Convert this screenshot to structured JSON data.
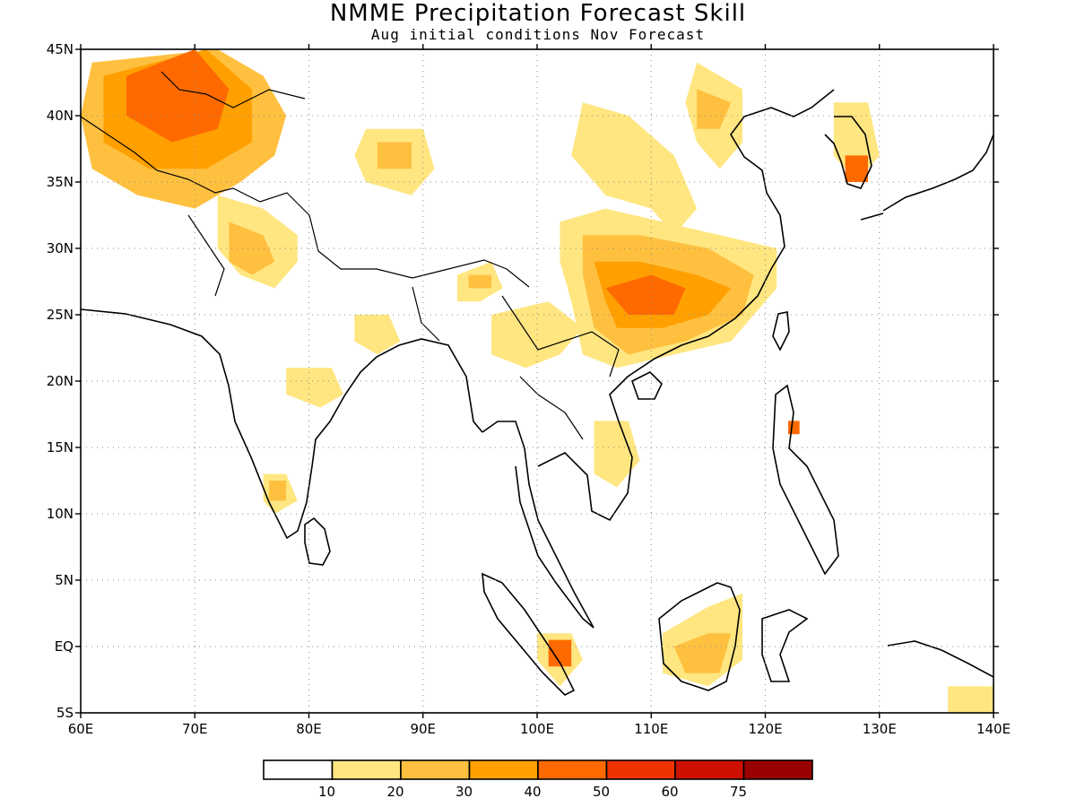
{
  "title": "NMME Precipitation Forecast Skill",
  "subtitle": "Aug initial conditions  Nov Forecast",
  "map": {
    "lon_range": [
      60,
      140
    ],
    "lat_range": [
      -5,
      45
    ],
    "lon_ticks": [
      {
        "value": 60,
        "label": "60E"
      },
      {
        "value": 70,
        "label": "70E"
      },
      {
        "value": 80,
        "label": "80E"
      },
      {
        "value": 90,
        "label": "90E"
      },
      {
        "value": 100,
        "label": "100E"
      },
      {
        "value": 110,
        "label": "110E"
      },
      {
        "value": 120,
        "label": "120E"
      },
      {
        "value": 130,
        "label": "130E"
      },
      {
        "value": 140,
        "label": "140E"
      }
    ],
    "lat_ticks": [
      {
        "value": 45,
        "label": "45N"
      },
      {
        "value": 40,
        "label": "40N"
      },
      {
        "value": 35,
        "label": "35N"
      },
      {
        "value": 30,
        "label": "30N"
      },
      {
        "value": 25,
        "label": "25N"
      },
      {
        "value": 20,
        "label": "20N"
      },
      {
        "value": 15,
        "label": "15N"
      },
      {
        "value": 10,
        "label": "10N"
      },
      {
        "value": 5,
        "label": "5N"
      },
      {
        "value": 0,
        "label": "EQ"
      },
      {
        "value": -5,
        "label": "5S"
      }
    ],
    "grid": "dotted"
  },
  "colorbar": {
    "colors": [
      "#ffffff",
      "#ffe680",
      "#ffc040",
      "#ffa000",
      "#ff6a00",
      "#ee3300",
      "#cc1100",
      "#990000"
    ],
    "labels": [
      "10",
      "20",
      "30",
      "40",
      "50",
      "60",
      "75"
    ]
  },
  "skill_regions": [
    {
      "level": 2,
      "pts": [
        [
          61,
          44
        ],
        [
          72,
          45
        ],
        [
          76,
          43
        ],
        [
          78,
          40
        ],
        [
          77,
          37
        ],
        [
          74,
          35
        ],
        [
          70,
          33
        ],
        [
          65,
          34
        ],
        [
          61,
          36
        ],
        [
          60,
          40
        ]
      ]
    },
    {
      "level": 3,
      "pts": [
        [
          62,
          43
        ],
        [
          71,
          45
        ],
        [
          75,
          42
        ],
        [
          75,
          38
        ],
        [
          71,
          36
        ],
        [
          66,
          36
        ],
        [
          62,
          38
        ]
      ]
    },
    {
      "level": 4,
      "pts": [
        [
          64,
          43
        ],
        [
          70,
          45
        ],
        [
          73,
          42
        ],
        [
          72,
          39
        ],
        [
          68,
          38
        ],
        [
          64,
          40
        ]
      ]
    },
    {
      "level": 1,
      "pts": [
        [
          72,
          34
        ],
        [
          76,
          33
        ],
        [
          79,
          31
        ],
        [
          79,
          29
        ],
        [
          77,
          27
        ],
        [
          74,
          28
        ],
        [
          72,
          30
        ]
      ]
    },
    {
      "level": 2,
      "pts": [
        [
          73,
          32
        ],
        [
          76,
          31
        ],
        [
          77,
          29
        ],
        [
          75,
          28
        ],
        [
          73,
          29
        ]
      ]
    },
    {
      "level": 1,
      "pts": [
        [
          85,
          39
        ],
        [
          90,
          39
        ],
        [
          91,
          36
        ],
        [
          89,
          34
        ],
        [
          85,
          35
        ],
        [
          84,
          37
        ]
      ]
    },
    {
      "level": 2,
      "pts": [
        [
          86,
          38
        ],
        [
          89,
          38
        ],
        [
          89,
          36
        ],
        [
          86,
          36
        ]
      ]
    },
    {
      "level": 1,
      "pts": [
        [
          104,
          41
        ],
        [
          108,
          40
        ],
        [
          112,
          37
        ],
        [
          114,
          33
        ],
        [
          112,
          31
        ],
        [
          110,
          33
        ],
        [
          106,
          34
        ],
        [
          103,
          37
        ]
      ]
    },
    {
      "level": 1,
      "pts": [
        [
          114,
          44
        ],
        [
          118,
          42
        ],
        [
          118,
          38
        ],
        [
          116,
          36
        ],
        [
          114,
          38
        ],
        [
          113,
          41
        ]
      ]
    },
    {
      "level": 2,
      "pts": [
        [
          114,
          42
        ],
        [
          117,
          41
        ],
        [
          116,
          39
        ],
        [
          114,
          39
        ]
      ]
    },
    {
      "level": 1,
      "pts": [
        [
          102,
          32
        ],
        [
          106,
          33
        ],
        [
          111,
          32
        ],
        [
          116,
          31
        ],
        [
          121,
          30
        ],
        [
          121,
          27
        ],
        [
          117,
          23
        ],
        [
          112,
          22
        ],
        [
          107,
          21
        ],
        [
          104,
          22
        ],
        [
          103,
          26
        ],
        [
          102,
          29
        ]
      ]
    },
    {
      "level": 2,
      "pts": [
        [
          104,
          31
        ],
        [
          109,
          31
        ],
        [
          115,
          30
        ],
        [
          119,
          28
        ],
        [
          118,
          25
        ],
        [
          113,
          23
        ],
        [
          108,
          22
        ],
        [
          105,
          24
        ],
        [
          104,
          28
        ]
      ]
    },
    {
      "level": 3,
      "pts": [
        [
          105,
          29
        ],
        [
          109,
          29
        ],
        [
          114,
          28
        ],
        [
          117,
          27
        ],
        [
          115,
          25
        ],
        [
          111,
          24
        ],
        [
          107,
          24
        ],
        [
          106,
          26
        ]
      ]
    },
    {
      "level": 4,
      "pts": [
        [
          106,
          27
        ],
        [
          110,
          28
        ],
        [
          113,
          27
        ],
        [
          112,
          25
        ],
        [
          108,
          25
        ]
      ]
    },
    {
      "level": 1,
      "pts": [
        [
          93,
          28
        ],
        [
          96,
          29
        ],
        [
          97,
          27
        ],
        [
          95,
          26
        ],
        [
          93,
          26
        ]
      ]
    },
    {
      "level": 2,
      "pts": [
        [
          94,
          28
        ],
        [
          96,
          28
        ],
        [
          96,
          27
        ],
        [
          94,
          27
        ]
      ]
    },
    {
      "level": 1,
      "pts": [
        [
          96,
          25
        ],
        [
          101,
          26
        ],
        [
          104,
          24
        ],
        [
          102,
          22
        ],
        [
          99,
          21
        ],
        [
          96,
          22
        ]
      ]
    },
    {
      "level": 1,
      "pts": [
        [
          84,
          25
        ],
        [
          87,
          25
        ],
        [
          88,
          23
        ],
        [
          86,
          22
        ],
        [
          84,
          23
        ]
      ]
    },
    {
      "level": 1,
      "pts": [
        [
          78,
          21
        ],
        [
          82,
          21
        ],
        [
          83,
          19
        ],
        [
          81,
          18
        ],
        [
          78,
          19
        ]
      ]
    },
    {
      "level": 1,
      "pts": [
        [
          76,
          13
        ],
        [
          78,
          13
        ],
        [
          79,
          11
        ],
        [
          77,
          10
        ],
        [
          76,
          11
        ]
      ]
    },
    {
      "level": 2,
      "pts": [
        [
          76.5,
          12.5
        ],
        [
          78,
          12.5
        ],
        [
          78,
          11
        ],
        [
          76.5,
          11
        ]
      ]
    },
    {
      "level": 1,
      "pts": [
        [
          105,
          17
        ],
        [
          108,
          17
        ],
        [
          109,
          14
        ],
        [
          107,
          12
        ],
        [
          105,
          13
        ]
      ]
    },
    {
      "level": 1,
      "pts": [
        [
          126,
          41
        ],
        [
          129,
          41
        ],
        [
          130,
          37
        ],
        [
          128,
          35
        ],
        [
          126,
          37
        ]
      ]
    },
    {
      "level": 4,
      "pts": [
        [
          127,
          37
        ],
        [
          129,
          37
        ],
        [
          129,
          35
        ],
        [
          127,
          35
        ]
      ]
    },
    {
      "level": 1,
      "pts": [
        [
          111,
          1
        ],
        [
          115,
          3
        ],
        [
          118,
          4
        ],
        [
          118,
          -1
        ],
        [
          115,
          -3
        ],
        [
          111,
          -2
        ]
      ]
    },
    {
      "level": 2,
      "pts": [
        [
          112,
          0
        ],
        [
          115,
          1
        ],
        [
          117,
          1
        ],
        [
          116,
          -2
        ],
        [
          113,
          -2
        ]
      ]
    },
    {
      "level": 1,
      "pts": [
        [
          100,
          1
        ],
        [
          103,
          1
        ],
        [
          104,
          -1
        ],
        [
          102,
          -3
        ],
        [
          100,
          -1
        ]
      ]
    },
    {
      "level": 4,
      "pts": [
        [
          101,
          0.5
        ],
        [
          103,
          0.5
        ],
        [
          103,
          -1.5
        ],
        [
          101,
          -1.5
        ]
      ]
    },
    {
      "level": 4,
      "pts": [
        [
          122,
          17
        ],
        [
          123,
          17
        ],
        [
          123,
          16
        ],
        [
          122,
          16
        ]
      ]
    },
    {
      "level": 1,
      "pts": [
        [
          136,
          -3
        ],
        [
          140,
          -3
        ],
        [
          140,
          -5
        ],
        [
          136,
          -5
        ]
      ]
    }
  ]
}
